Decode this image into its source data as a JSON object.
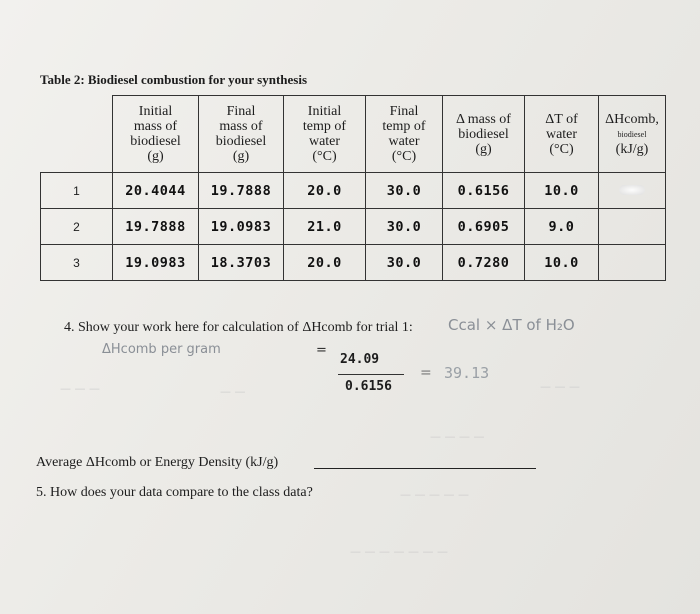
{
  "title": "Table 2: Biodiesel combustion for your synthesis",
  "table": {
    "headers": [
      [
        "Initial",
        "mass of",
        "biodiesel",
        "(g)"
      ],
      [
        "Final",
        "mass of",
        "biodiesel",
        "(g)"
      ],
      [
        "Initial",
        "temp of",
        "water",
        "(°C)"
      ],
      [
        "Final",
        "temp of",
        "water",
        "(°C)"
      ],
      [
        "Δ mass of",
        "biodiesel",
        "(g)"
      ],
      [
        "ΔT of",
        "water",
        "(°C)"
      ],
      [
        "ΔHcomb,",
        "biodiesel",
        "(kJ/g)"
      ]
    ],
    "rows": [
      {
        "num": "1",
        "cells": [
          "20.4044",
          "19.7888",
          "20.0",
          "30.0",
          "0.6156",
          "10.0",
          ""
        ]
      },
      {
        "num": "2",
        "cells": [
          "19.7888",
          "19.0983",
          "21.0",
          "30.0",
          "0.6905",
          "9.0",
          ""
        ]
      },
      {
        "num": "3",
        "cells": [
          "19.0983",
          "18.3703",
          "20.0",
          "30.0",
          "0.7280",
          "10.0",
          ""
        ]
      }
    ]
  },
  "question4": {
    "text": "4.  Show your work here for calculation of ΔHcomb for trial 1:",
    "handwritten_formula": "Ccal × ΔT of H₂O",
    "label": "ΔHcomb per gram",
    "numerator": "24.09",
    "denominator": "0.6156",
    "result": "39.13"
  },
  "average": {
    "text": "Average ΔHcomb or Energy Density (kJ/g)"
  },
  "question5": {
    "text": "5.  How does your data compare to the class data?"
  }
}
